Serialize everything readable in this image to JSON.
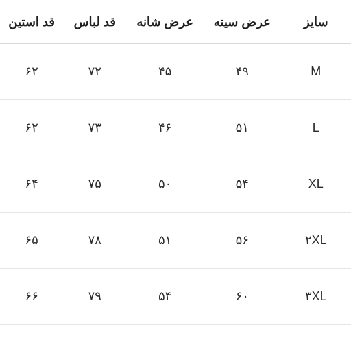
{
  "table": {
    "type": "table",
    "columns": [
      {
        "key": "size",
        "label": "سایز",
        "width_pct": 20,
        "align": "center"
      },
      {
        "key": "chest",
        "label": "عرض سینه",
        "width_pct": 22,
        "align": "center"
      },
      {
        "key": "shoulder",
        "label": "عرض شانه",
        "width_pct": 22,
        "align": "center"
      },
      {
        "key": "length",
        "label": "قد لباس",
        "width_pct": 18,
        "align": "center"
      },
      {
        "key": "sleeve",
        "label": "قد استین",
        "width_pct": 18,
        "align": "center"
      }
    ],
    "rows": [
      {
        "size": "M",
        "chest": "۴۹",
        "shoulder": "۴۵",
        "length": "۷۲",
        "sleeve": "۶۲"
      },
      {
        "size": "L",
        "chest": "۵۱",
        "shoulder": "۴۶",
        "length": "۷۳",
        "sleeve": "۶۲"
      },
      {
        "size": "XL",
        "chest": "۵۴",
        "shoulder": "۵۰",
        "length": "۷۵",
        "sleeve": "۶۴"
      },
      {
        "size": "۲XL",
        "chest": "۵۶",
        "shoulder": "۵۱",
        "length": "۷۸",
        "sleeve": "۶۵"
      },
      {
        "size": "۳XL",
        "chest": "۶۰",
        "shoulder": "۵۴",
        "length": "۷۹",
        "sleeve": "۶۶"
      }
    ],
    "header_fontsize": 18,
    "header_fontweight": 700,
    "cell_fontsize": 18,
    "cell_fontweight": 400,
    "header_color": "#1f1f1f",
    "cell_color": "#2b2b2b",
    "background_color": "#ffffff",
    "border_color": "#e5e5e5",
    "header_border_color": "#d9d9d9",
    "direction": "rtl"
  }
}
